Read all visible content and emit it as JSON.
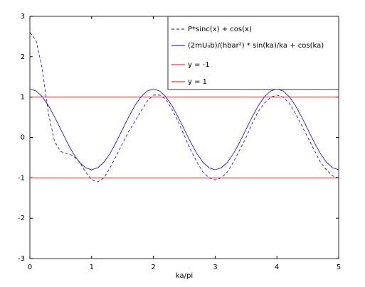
{
  "chart_data": {
    "type": "line",
    "xlabel": "ka/pi",
    "xlim": [
      0,
      5
    ],
    "xticks": [
      0,
      1,
      2,
      3,
      4,
      5
    ],
    "ylim": [
      -3,
      3
    ],
    "yticks": [
      -3,
      -2,
      -1,
      0,
      1,
      2,
      3
    ],
    "legend": "upper right",
    "series": [
      {
        "name": "P*sinc(x) + cos(x)",
        "color": "#0000ff",
        "linestyle": "--",
        "x": [
          0,
          0.1,
          0.2,
          0.3,
          0.4,
          0.5,
          0.6,
          0.7,
          0.8,
          0.9,
          1,
          1.1,
          1.2,
          1.3,
          1.4,
          1.5,
          1.6,
          1.7,
          1.8,
          1.9,
          2,
          2.1,
          2.2,
          2.3,
          2.4,
          2.5,
          2.6,
          2.7,
          2.8,
          2.9,
          3,
          3.1,
          3.2,
          3.3,
          3.4,
          3.5,
          3.6,
          3.7,
          3.8,
          3.9,
          4,
          4.1,
          4.2,
          4.3,
          4.4,
          4.5,
          4.6,
          4.7,
          4.8,
          4.9,
          5
        ],
        "values": [
          2.6,
          2.4,
          1.7,
          0.6,
          -0.1,
          -0.35,
          -0.4,
          -0.45,
          -0.6,
          -0.85,
          -1.05,
          -1.1,
          -1.0,
          -0.75,
          -0.45,
          -0.15,
          0.15,
          0.4,
          0.65,
          0.9,
          1.05,
          1.05,
          0.95,
          0.7,
          0.4,
          0.05,
          -0.3,
          -0.6,
          -0.85,
          -1.0,
          -1.05,
          -1.0,
          -0.85,
          -0.6,
          -0.3,
          0.0,
          0.35,
          0.65,
          0.85,
          1.0,
          1.05,
          1.0,
          0.85,
          0.6,
          0.3,
          0.0,
          -0.3,
          -0.6,
          -0.8,
          -0.95,
          -1.0
        ]
      },
      {
        "name": "(2mU₀b)/(hbar²) * sin(ka)/ka + cos(ka)",
        "color": "#0000ff",
        "linestyle": "-",
        "x": [
          0,
          0.1,
          0.2,
          0.3,
          0.4,
          0.5,
          0.6,
          0.7,
          0.8,
          0.9,
          1,
          1.1,
          1.2,
          1.3,
          1.4,
          1.5,
          1.6,
          1.7,
          1.8,
          1.9,
          2,
          2.1,
          2.2,
          2.3,
          2.4,
          2.5,
          2.6,
          2.7,
          2.8,
          2.9,
          3,
          3.1,
          3.2,
          3.3,
          3.4,
          3.5,
          3.6,
          3.7,
          3.8,
          3.9,
          4,
          4.1,
          4.2,
          4.3,
          4.4,
          4.5,
          4.6,
          4.7,
          4.8,
          4.9,
          5
        ],
        "values": [
          1.2,
          1.15,
          1.01,
          0.79,
          0.51,
          0.2,
          -0.11,
          -0.39,
          -0.61,
          -0.75,
          -0.8,
          -0.75,
          -0.61,
          -0.39,
          -0.11,
          0.2,
          0.51,
          0.79,
          1.01,
          1.15,
          1.2,
          1.15,
          1.01,
          0.79,
          0.51,
          0.2,
          -0.11,
          -0.39,
          -0.61,
          -0.75,
          -0.8,
          -0.75,
          -0.61,
          -0.39,
          -0.11,
          0.2,
          0.51,
          0.79,
          1.01,
          1.15,
          1.2,
          1.15,
          1.01,
          0.79,
          0.51,
          0.2,
          -0.11,
          -0.39,
          -0.61,
          -0.75,
          -0.8
        ]
      },
      {
        "name": "y = -1",
        "color": "#ff0000",
        "linestyle": "-",
        "x": [
          0,
          5
        ],
        "values": [
          -1,
          -1
        ]
      },
      {
        "name": "y = 1",
        "color": "#ff0000",
        "linestyle": "-",
        "x": [
          0,
          5
        ],
        "values": [
          1,
          1
        ]
      }
    ]
  }
}
